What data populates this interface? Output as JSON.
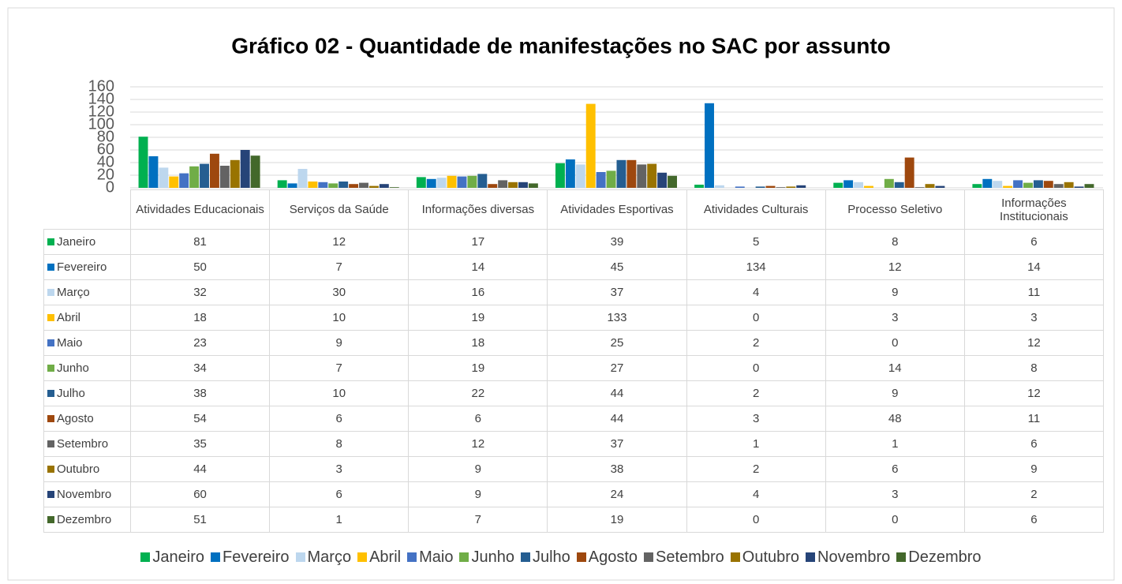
{
  "chart_data": {
    "type": "bar",
    "title": "Gráfico 02 - Quantidade de manifestações no SAC por assunto",
    "categories": [
      "Atividades Educacionais",
      "Serviços da Saúde",
      "Informações diversas",
      "Atividades Esportivas",
      "Atividades Culturais",
      "Processo Seletivo",
      "Informações Institucionais"
    ],
    "series": [
      {
        "name": "Janeiro",
        "color": "#00b050",
        "values": [
          81,
          12,
          17,
          39,
          5,
          8,
          6
        ]
      },
      {
        "name": "Fevereiro",
        "color": "#0070c0",
        "values": [
          50,
          7,
          14,
          45,
          134,
          12,
          14
        ]
      },
      {
        "name": "Março",
        "color": "#bdd7ee",
        "values": [
          32,
          30,
          16,
          37,
          4,
          9,
          11
        ]
      },
      {
        "name": "Abril",
        "color": "#ffc000",
        "values": [
          18,
          10,
          19,
          133,
          0,
          3,
          3
        ]
      },
      {
        "name": "Maio",
        "color": "#4472c4",
        "values": [
          23,
          9,
          18,
          25,
          2,
          0,
          12
        ]
      },
      {
        "name": "Junho",
        "color": "#70ad47",
        "values": [
          34,
          7,
          19,
          27,
          0,
          14,
          8
        ]
      },
      {
        "name": "Julho",
        "color": "#255e91",
        "values": [
          38,
          10,
          22,
          44,
          2,
          9,
          12
        ]
      },
      {
        "name": "Agosto",
        "color": "#9e480e",
        "values": [
          54,
          6,
          6,
          44,
          3,
          48,
          11
        ]
      },
      {
        "name": "Setembro",
        "color": "#636363",
        "values": [
          35,
          8,
          12,
          37,
          1,
          1,
          6
        ]
      },
      {
        "name": "Outubro",
        "color": "#997300",
        "values": [
          44,
          3,
          9,
          38,
          2,
          6,
          9
        ]
      },
      {
        "name": "Novembro",
        "color": "#264478",
        "values": [
          60,
          6,
          9,
          24,
          4,
          3,
          2
        ]
      },
      {
        "name": "Dezembro",
        "color": "#43682b",
        "values": [
          51,
          1,
          7,
          19,
          0,
          0,
          6
        ]
      }
    ],
    "ylim": [
      0,
      160
    ],
    "yticks": [
      0,
      20,
      40,
      60,
      80,
      100,
      120,
      140,
      160
    ],
    "grid": true
  }
}
